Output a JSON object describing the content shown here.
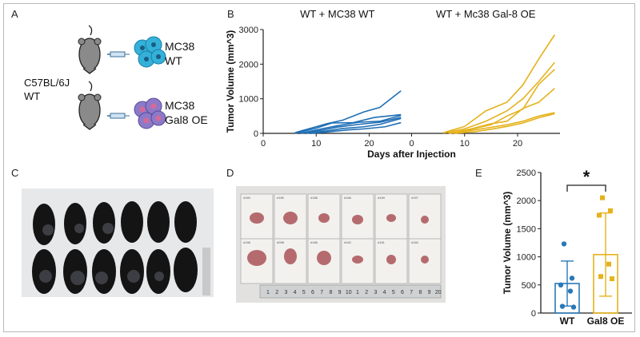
{
  "panels": {
    "a": "A",
    "b": "B",
    "c": "C",
    "d": "D",
    "e": "E"
  },
  "panel_a": {
    "host_label_line1": "C57BL/6J",
    "host_label_line2": "WT",
    "cell_top_line1": "MC38",
    "cell_top_line2": "WT",
    "cell_bottom_line1": "MC38",
    "cell_bottom_line2": "Gal8 OE",
    "colors": {
      "wt_cells": "#34b1d8",
      "gal8_cells": "#8c7ac8",
      "mouse": "#8a8a8a",
      "syringe": "#6aa0c8"
    }
  },
  "panel_d": {
    "sample_tags_top": [
      "#160",
      "#180",
      "#186",
      "#166",
      "#169",
      "#157"
    ],
    "sample_tags_bottom": [
      "#158",
      "#098",
      "#186",
      "#162",
      "#161",
      "#160"
    ],
    "ruler_numbers": [
      "1",
      "2",
      "3",
      "4",
      "5",
      "6",
      "7",
      "8",
      "9",
      "10",
      "1",
      "2",
      "3",
      "4",
      "5",
      "6",
      "7",
      "8",
      "9",
      "20"
    ]
  },
  "chart_data": [
    {
      "type": "line",
      "panel": "B",
      "subtitles": [
        "WT + MC38 WT",
        "WT + Mc38 Gal-8 OE"
      ],
      "xlabel": "Days after Injection",
      "ylabel": "Tumor Volume (mm^3)",
      "x_ticks": [
        0,
        10,
        20
      ],
      "y_ticks": [
        0,
        1000,
        2000,
        3000
      ],
      "ylim": [
        0,
        3000
      ],
      "facets": [
        {
          "name": "WT + MC38 WT",
          "color": "#1f6fb5",
          "xlim": [
            0,
            28
          ],
          "series": [
            {
              "x": [
                6,
                12,
                15,
                19,
                22,
                26
              ],
              "y": [
                20,
                280,
                380,
                620,
                750,
                1230
              ]
            },
            {
              "x": [
                6,
                10,
                13,
                17,
                21,
                26
              ],
              "y": [
                0,
                150,
                300,
                310,
                460,
                540
              ]
            },
            {
              "x": [
                7,
                11,
                14,
                18,
                22,
                26
              ],
              "y": [
                0,
                130,
                220,
                320,
                350,
                520
              ]
            },
            {
              "x": [
                7,
                11,
                14,
                18,
                22,
                26
              ],
              "y": [
                0,
                90,
                180,
                260,
                320,
                460
              ]
            },
            {
              "x": [
                8,
                12,
                15,
                19,
                22,
                26
              ],
              "y": [
                0,
                70,
                140,
                190,
                260,
                430
              ]
            },
            {
              "x": [
                9,
                12,
                16,
                19,
                23,
                26
              ],
              "y": [
                0,
                40,
                100,
                130,
                190,
                310
              ]
            }
          ]
        },
        {
          "name": "WT + Mc38 Gal-8 OE",
          "color": "#e5b21b",
          "xlim": [
            0,
            28
          ],
          "series": [
            {
              "x": [
                6,
                10,
                14,
                18,
                21,
                24,
                27
              ],
              "y": [
                20,
                200,
                650,
                900,
                1400,
                2150,
                2850
              ]
            },
            {
              "x": [
                6,
                10,
                14,
                18,
                21,
                24,
                27
              ],
              "y": [
                10,
                130,
                350,
                650,
                1000,
                1500,
                2050
              ]
            },
            {
              "x": [
                7,
                11,
                15,
                18,
                21,
                24,
                27
              ],
              "y": [
                0,
                110,
                250,
                500,
                700,
                1420,
                1850
              ]
            },
            {
              "x": [
                7,
                11,
                15,
                18,
                21,
                24,
                27
              ],
              "y": [
                0,
                120,
                280,
                350,
                720,
                900,
                1300
              ]
            },
            {
              "x": [
                7,
                11,
                14,
                18,
                21,
                24,
                27
              ],
              "y": [
                0,
                80,
                150,
                250,
                350,
                500,
                600
              ]
            },
            {
              "x": [
                8,
                12,
                15,
                18,
                21,
                24,
                27
              ],
              "y": [
                0,
                50,
                120,
                200,
                300,
                450,
                570
              ]
            }
          ]
        }
      ]
    },
    {
      "type": "bar",
      "panel": "E",
      "categories": [
        "WT",
        "Gal8 OE"
      ],
      "ylabel": "Tumor Volume  (mm^3)",
      "ylim": [
        0,
        2500
      ],
      "y_ticks": [
        0,
        500,
        1000,
        1500,
        2000,
        2500
      ],
      "series": [
        {
          "values": [
            525,
            1040
          ]
        }
      ],
      "error_sd": [
        400,
        740
      ],
      "points": [
        [
          1230,
          620,
          500,
          390,
          120,
          105
        ],
        [
          2050,
          1820,
          1740,
          870,
          650,
          610
        ]
      ],
      "colors": [
        "#2979b8",
        "#e5b21b"
      ],
      "significance": "*"
    }
  ]
}
